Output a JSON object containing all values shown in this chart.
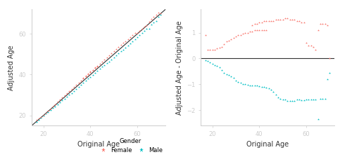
{
  "female_color": "#F8766D",
  "male_color": "#00BFC4",
  "left_xlim": [
    15,
    72
  ],
  "left_ylim": [
    15,
    72
  ],
  "left_xlabel": "Original Age",
  "left_ylabel": "Adjusted Age",
  "right_xlim": [
    15,
    72
  ],
  "right_ylim": [
    -2.6,
    1.9
  ],
  "right_xlabel": "Original Age",
  "right_ylabel": "Adjusted Age - Original Age",
  "legend_title": "Gender",
  "legend_female": "Female",
  "legend_male": "Male",
  "tick_labelsize": 6,
  "axis_labelsize": 7,
  "legend_fontsize": 6,
  "bg_color": "#ffffff",
  "spine_color": "#cccccc",
  "diag_color": "#333333",
  "hline_color": "#333333",
  "female_ages_group1": [
    17,
    18,
    19,
    20,
    21,
    22,
    23,
    24,
    25,
    26,
    27,
    28,
    29,
    30,
    31,
    32,
    33,
    34,
    35,
    36,
    37,
    38,
    39,
    40,
    41,
    42,
    43
  ],
  "female_offsets_group1": [
    0.9,
    0.35,
    0.35,
    0.35,
    0.35,
    0.4,
    0.42,
    0.45,
    0.55,
    0.65,
    0.7,
    0.75,
    0.8,
    0.85,
    0.9,
    0.9,
    0.95,
    1.0,
    1.0,
    1.05,
    1.05,
    1.1,
    1.1,
    1.1,
    1.1,
    1.1,
    1.1
  ],
  "female_ages_group2": [
    37,
    38,
    39,
    40,
    41,
    42,
    43,
    44,
    45,
    46,
    47,
    48,
    49,
    50,
    51,
    52,
    53,
    54,
    55,
    56,
    57,
    58,
    59,
    60,
    61,
    62,
    63,
    64,
    65,
    66,
    67,
    68,
    69,
    70
  ],
  "female_offsets_group2": [
    1.3,
    1.35,
    1.35,
    1.4,
    1.4,
    1.45,
    1.45,
    1.45,
    1.45,
    1.45,
    1.5,
    1.5,
    1.5,
    1.5,
    1.55,
    1.55,
    1.5,
    1.5,
    1.5,
    1.45,
    1.45,
    1.4,
    1.4,
    0.6,
    0.5,
    0.5,
    0.45,
    0.35,
    1.1,
    1.35,
    1.35,
    1.35,
    1.3,
    0.0
  ],
  "male_ages": [
    17,
    18,
    19,
    20,
    21,
    22,
    23,
    24,
    25,
    26,
    27,
    28,
    29,
    30,
    31,
    32,
    33,
    34,
    35,
    36,
    37,
    38,
    39,
    40,
    41,
    42,
    43,
    44,
    45,
    46,
    47,
    48,
    49,
    50,
    51,
    52,
    53,
    54,
    55,
    56,
    57,
    58,
    59,
    60,
    61,
    62,
    63,
    64,
    65,
    66,
    67,
    68,
    69,
    70
  ],
  "male_offsets": [
    -0.08,
    -0.1,
    -0.15,
    -0.2,
    -0.25,
    -0.3,
    -0.35,
    -0.45,
    -0.55,
    -0.6,
    -0.65,
    -0.7,
    -0.75,
    -0.85,
    -0.9,
    -0.95,
    -0.98,
    -1.0,
    -1.02,
    -1.05,
    -1.05,
    -1.05,
    -1.05,
    -1.08,
    -1.1,
    -1.1,
    -1.12,
    -1.15,
    -1.2,
    -1.3,
    -1.4,
    -1.5,
    -1.55,
    -1.6,
    -1.6,
    -1.65,
    -1.65,
    -1.65,
    -1.65,
    -1.6,
    -1.6,
    -1.62,
    -1.62,
    -1.6,
    -1.6,
    -1.58,
    -1.6,
    -1.6,
    -2.35,
    -1.55,
    -1.55,
    -1.55,
    -0.8,
    -0.55
  ]
}
